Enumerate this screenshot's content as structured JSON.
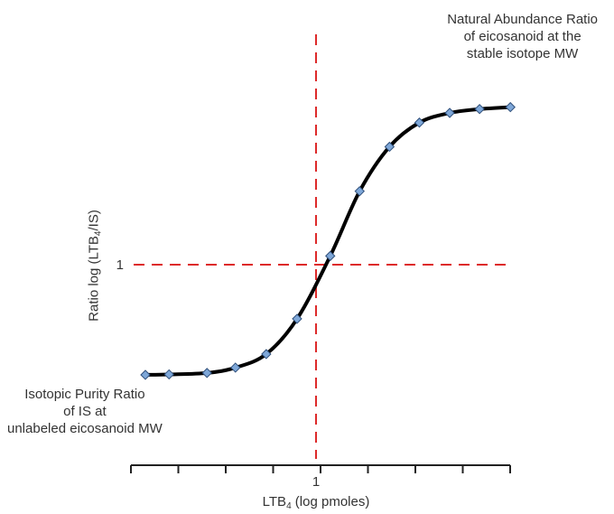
{
  "chart_data": {
    "type": "line",
    "xlabel": {
      "prefix": "LTB",
      "sub": "4",
      "suffix": " (log pmoles)"
    },
    "ylabel": {
      "prefix": "Ratio log (LTB",
      "sub": "4",
      "suffix": "/IS)"
    },
    "x_tick_label": "1",
    "y_tick_label": "1",
    "annotations": {
      "top": [
        "Natural Abundance Ratio",
        "of eicosanoid at the",
        "stable isotope MW"
      ],
      "bottom": [
        "Isotopic Purity Ratio",
        "of IS at",
        "unlabeled eicosanoid MW"
      ]
    },
    "reference_lines": {
      "x": 0,
      "y": 0,
      "color": "#dd2a2a",
      "style": "dashed"
    },
    "xlim": [
      -4,
      4
    ],
    "ylim": [
      -2.3,
      3.3
    ],
    "series": [
      {
        "color": "#000000",
        "marker_color": "#7ea7d8",
        "marker": "diamond",
        "points": [
          [
            -3.6,
            -2.28
          ],
          [
            -3.1,
            -2.27
          ],
          [
            -2.3,
            -2.24
          ],
          [
            -1.7,
            -2.13
          ],
          [
            -1.05,
            -1.85
          ],
          [
            -0.4,
            -1.12
          ],
          [
            0.3,
            0.18
          ],
          [
            0.92,
            1.52
          ],
          [
            1.55,
            2.44
          ],
          [
            2.18,
            2.94
          ],
          [
            2.82,
            3.14
          ],
          [
            3.45,
            3.22
          ],
          [
            4.1,
            3.26
          ]
        ]
      }
    ]
  }
}
